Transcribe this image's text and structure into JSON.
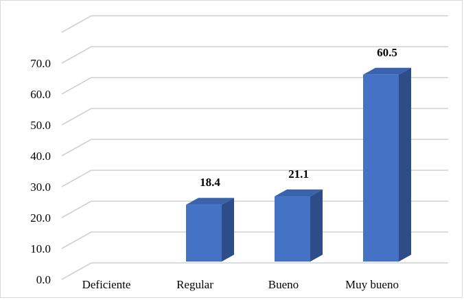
{
  "chart_data": {
    "type": "bar",
    "categories": [
      "Deficiente",
      "Regular",
      "Bueno",
      "Muy bueno"
    ],
    "values": [
      0,
      18.4,
      21.1,
      60.5
    ],
    "data_labels": [
      "",
      "18.4",
      "21.1",
      "60.5"
    ],
    "y_ticks": [
      "0.0",
      "10.0",
      "20.0",
      "30.0",
      "40.0",
      "50.0",
      "60.0",
      "70.0"
    ],
    "ylim": [
      0,
      80
    ],
    "grid": true,
    "style": "3d-column",
    "colors": {
      "bar_front": "#4472c4",
      "bar_side": "#2e4d88",
      "bar_top": "#3a62ad",
      "gridline": "#d0d0d0"
    }
  }
}
